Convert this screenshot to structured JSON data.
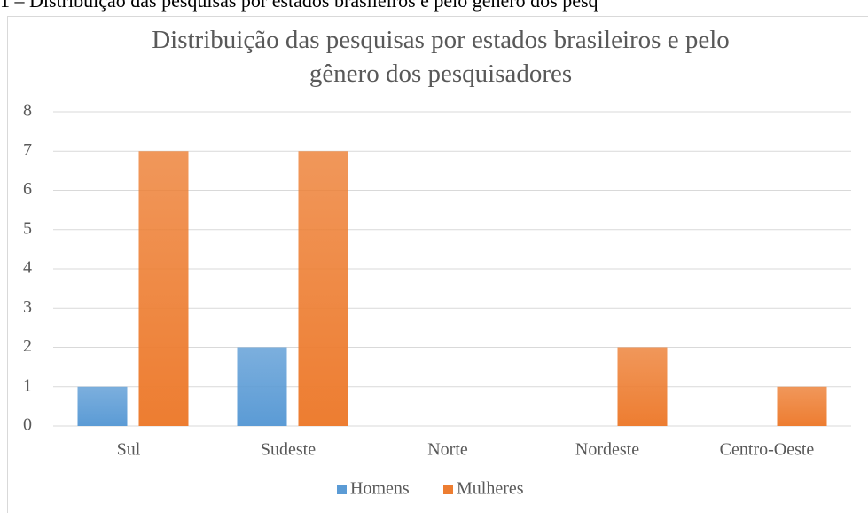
{
  "chart_data": {
    "type": "bar",
    "caption": "1 – Distribuição das pesquisas por estados brasileiros e pelo gênero dos pesq",
    "title": "Distribuição das pesquisas por estados brasileiros e pelo gênero dos pesquisadores",
    "categories": [
      "Sul",
      "Sudeste",
      "Norte",
      "Nordeste",
      "Centro-Oeste"
    ],
    "series": [
      {
        "name": "Homens",
        "color": "#5b9bd5",
        "values": [
          1,
          2,
          0,
          0,
          0
        ]
      },
      {
        "name": "Mulheres",
        "color": "#ed7d31",
        "values": [
          7,
          7,
          0,
          2,
          1
        ]
      }
    ],
    "ylim": [
      0,
      8
    ],
    "yticks": [
      0,
      1,
      2,
      3,
      4,
      5,
      6,
      7,
      8
    ],
    "grid": true,
    "legend": "bottom"
  }
}
